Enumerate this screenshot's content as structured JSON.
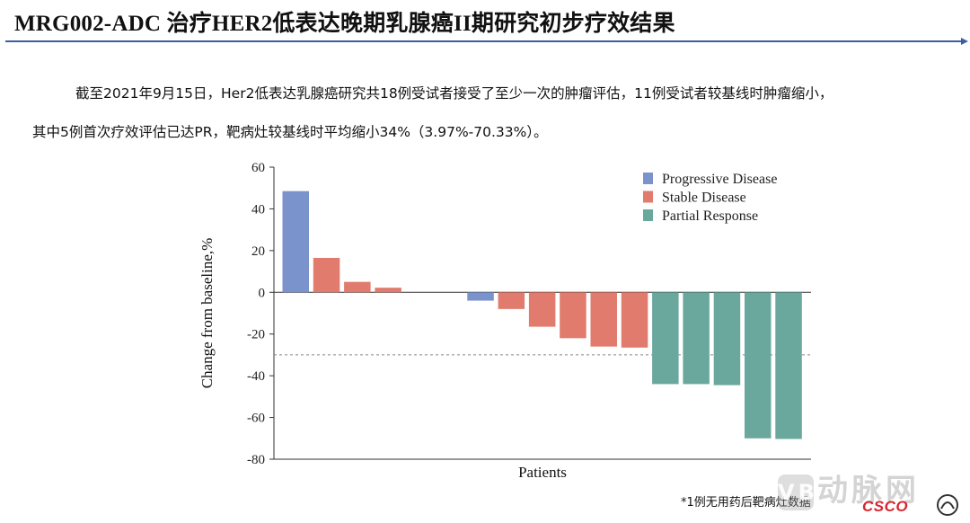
{
  "header": {
    "title": "MRG002-ADC 治疗HER2低表达晚期乳腺癌II期研究初步疗效结果"
  },
  "body": {
    "paragraph_1": "截至2021年9月15日，Her2低表达乳腺癌研究共18例受试者接受了至少一次的肿瘤评估，11例受试者较基线时肿瘤缩小，",
    "paragraph_2": "其中5例首次疗效评估已达PR，靶病灶较基线时平均缩小34%（3.97%-70.33%）。"
  },
  "chart_data": {
    "type": "bar",
    "subtype": "waterfall",
    "xlabel": "Patients",
    "ylabel": "Change from baseline,%",
    "ylim": [
      -80,
      60
    ],
    "yticks": [
      60,
      40,
      20,
      0,
      -20,
      -40,
      -60,
      -80
    ],
    "reference_line": -30,
    "grid": false,
    "legend_position": "top-right",
    "legend": [
      {
        "name": "Progressive Disease",
        "color": "#7b93cc"
      },
      {
        "name": "Stable Disease",
        "color": "#e07b6e"
      },
      {
        "name": "Partial Response",
        "color": "#6aa89e"
      }
    ],
    "bars": [
      {
        "value": 48.5,
        "category": "Progressive Disease"
      },
      {
        "value": 16.5,
        "category": "Stable Disease"
      },
      {
        "value": 5,
        "category": "Stable Disease"
      },
      {
        "value": 2.2,
        "category": "Stable Disease"
      },
      {
        "value": 0,
        "category": ""
      },
      {
        "value": 0,
        "category": ""
      },
      {
        "value": -4,
        "category": "Progressive Disease"
      },
      {
        "value": -8,
        "category": "Stable Disease"
      },
      {
        "value": -16.5,
        "category": "Stable Disease"
      },
      {
        "value": -22,
        "category": "Stable Disease"
      },
      {
        "value": -26,
        "category": "Stable Disease"
      },
      {
        "value": -26.5,
        "category": "Stable Disease"
      },
      {
        "value": -44,
        "category": "Partial Response"
      },
      {
        "value": -44,
        "category": "Partial Response"
      },
      {
        "value": -44.5,
        "category": "Partial Response"
      },
      {
        "value": -70,
        "category": "Partial Response"
      },
      {
        "value": -70.3,
        "category": "Partial Response"
      }
    ]
  },
  "footer": {
    "note": "*1例无用药后靶病灶数据",
    "logo_text": "CSCO",
    "watermark_text": "动脉网",
    "watermark_badge": "VB"
  },
  "colors": {
    "title_rule": "#3b5fa3",
    "logo": "#d8262f"
  }
}
